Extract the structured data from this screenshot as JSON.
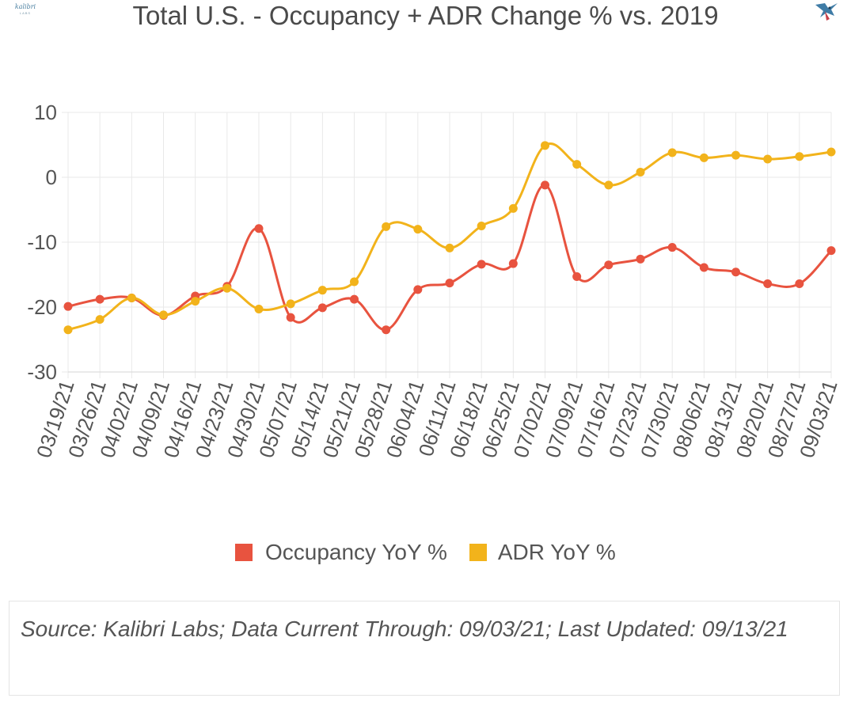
{
  "page": {
    "title": "Total U.S. - Occupancy + ADR Change % vs. 2019",
    "source": "Source: Kalibri Labs; Data Current Through: 09/03/21; Last Updated: 09/13/21",
    "logo_left_text": "kalibri",
    "logo_left_sub": "LABS",
    "logo_right_icon": "hummingbird-icon"
  },
  "colors": {
    "occupancy": "#e8533f",
    "adr": "#f2b31b",
    "grid": "#e9e9e9",
    "axis_text": "#555555"
  },
  "chart_data": {
    "type": "line",
    "title": "Total U.S. - Occupancy + ADR Change % vs. 2019",
    "categories": [
      "03/19/21",
      "03/26/21",
      "04/02/21",
      "04/09/21",
      "04/16/21",
      "04/23/21",
      "04/30/21",
      "05/07/21",
      "05/14/21",
      "05/21/21",
      "05/28/21",
      "06/04/21",
      "06/11/21",
      "06/18/21",
      "06/25/21",
      "07/02/21",
      "07/09/21",
      "07/16/21",
      "07/23/21",
      "07/30/21",
      "08/06/21",
      "08/13/21",
      "08/20/21",
      "08/27/21",
      "09/03/21"
    ],
    "series": [
      {
        "name": "Occupancy YoY %",
        "color": "#e8533f",
        "values": [
          -19.9,
          -18.8,
          -18.6,
          -21.3,
          -18.3,
          -16.8,
          -7.9,
          -21.6,
          -20.1,
          -18.8,
          -23.5,
          -17.3,
          -16.3,
          -13.4,
          -13.3,
          -1.2,
          -15.3,
          -13.5,
          -12.6,
          -10.8,
          -13.9,
          -14.6,
          -16.4,
          -16.4,
          -11.3
        ]
      },
      {
        "name": "ADR YoY %",
        "color": "#f2b31b",
        "values": [
          -23.5,
          -21.9,
          -18.6,
          -21.2,
          -19.1,
          -17.1,
          -20.3,
          -19.5,
          -17.4,
          -16.1,
          -7.6,
          -8.0,
          -10.9,
          -7.5,
          -4.8,
          4.9,
          2.0,
          -1.2,
          0.8,
          3.8,
          3.0,
          3.4,
          2.8,
          3.2,
          3.9
        ]
      }
    ],
    "yticks": [
      10,
      0,
      -10,
      -20,
      -30
    ],
    "ylim": [
      -30,
      10
    ],
    "grid": true,
    "legend": "bottom"
  }
}
